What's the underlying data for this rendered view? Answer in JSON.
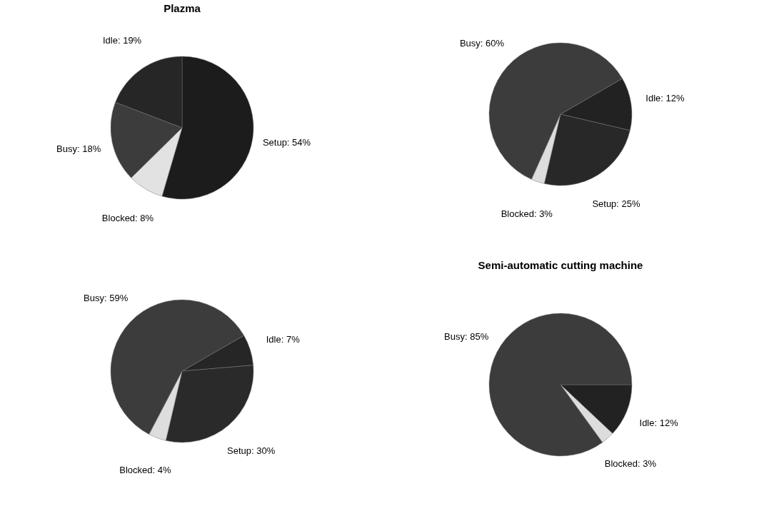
{
  "chart_data": [
    {
      "type": "pie",
      "title": "Plazma",
      "categories": [
        "Setup",
        "Blocked",
        "Busy",
        "Idle"
      ],
      "values": [
        54,
        8,
        18,
        19
      ],
      "value_labels": [
        "54%",
        "8%",
        "18%",
        "19%"
      ],
      "colors": [
        "#1c1c1c",
        "#e2e2e2",
        "#3c3c3c",
        "#262626"
      ],
      "legend": false
    },
    {
      "type": "pie",
      "categories": [
        "Idle",
        "Setup",
        "Blocked",
        "Busy"
      ],
      "values": [
        12,
        25,
        3,
        60
      ],
      "value_labels": [
        "12%",
        "25%",
        "3%",
        "60%"
      ],
      "colors": [
        "#222222",
        "#282828",
        "#dddddd",
        "#3c3c3c"
      ],
      "legend": false
    },
    {
      "type": "pie",
      "categories": [
        "Idle",
        "Setup",
        "Blocked",
        "Busy"
      ],
      "values": [
        7,
        30,
        4,
        59
      ],
      "value_labels": [
        "7%",
        "30%",
        "4%",
        "59%"
      ],
      "colors": [
        "#262626",
        "#2a2a2a",
        "#dddddd",
        "#3c3c3c"
      ],
      "legend": false
    },
    {
      "type": "pie",
      "title": "Semi-automatic cutting machine",
      "categories": [
        "Idle",
        "Blocked",
        "Busy"
      ],
      "values": [
        12,
        3,
        85
      ],
      "value_labels": [
        "12%",
        "3%",
        "85%"
      ],
      "colors": [
        "#222222",
        "#dddddd",
        "#3c3c3c"
      ],
      "legend": false
    }
  ]
}
